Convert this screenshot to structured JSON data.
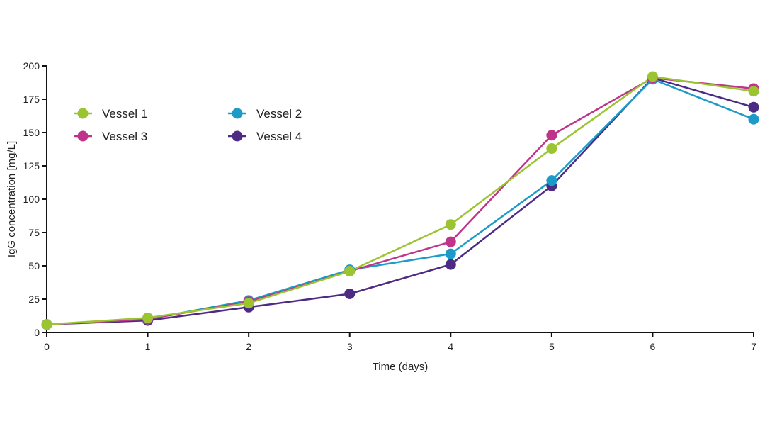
{
  "chart_data": {
    "type": "line",
    "xlabel": "Time (days)",
    "ylabel": "IgG concentration [mg/L]",
    "x": [
      0,
      1,
      2,
      3,
      4,
      5,
      6,
      7
    ],
    "xlim": [
      0,
      7
    ],
    "ylim": [
      0,
      200
    ],
    "xticks": [
      "0",
      "1",
      "2",
      "3",
      "4",
      "5",
      "6",
      "7"
    ],
    "yticks": [
      "0",
      "25",
      "50",
      "75",
      "100",
      "125",
      "150",
      "175",
      "200"
    ],
    "grid": false,
    "legend_position": "top-left",
    "series": [
      {
        "name": "Vessel 1",
        "color": "#9bc431",
        "values": [
          6,
          11,
          22,
          46,
          81,
          138,
          192,
          181
        ]
      },
      {
        "name": "Vessel 2",
        "color": "#1c9bc8",
        "values": [
          6,
          10,
          24,
          47,
          59,
          114,
          190,
          160
        ]
      },
      {
        "name": "Vessel 3",
        "color": "#c0338a",
        "values": [
          6,
          10,
          23,
          46,
          68,
          148,
          191,
          183
        ]
      },
      {
        "name": "Vessel 4",
        "color": "#4d2a84",
        "values": [
          6,
          9,
          19,
          29,
          51,
          110,
          191,
          169
        ]
      }
    ]
  }
}
